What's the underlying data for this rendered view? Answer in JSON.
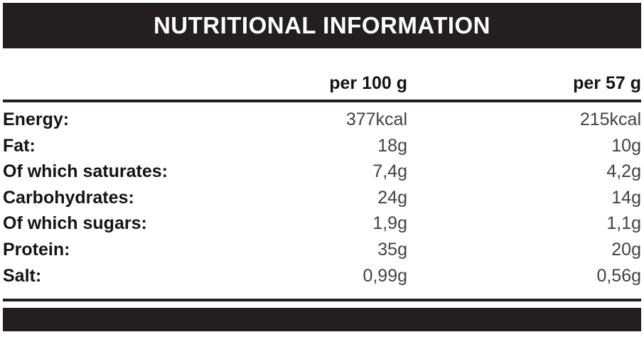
{
  "title": "NUTRITIONAL INFORMATION",
  "table": {
    "columns": [
      "per 100 g",
      "per 57 g"
    ],
    "rows": [
      {
        "label": "Energy:",
        "per_100g": "377kcal",
        "per_57g": "215kcal"
      },
      {
        "label": "Fat:",
        "per_100g": "18g",
        "per_57g": "10g"
      },
      {
        "label": "Of which saturates:",
        "per_100g": "7,4g",
        "per_57g": "4,2g"
      },
      {
        "label": "Carbohydrates:",
        "per_100g": "24g",
        "per_57g": "14g"
      },
      {
        "label": "Of which sugars:",
        "per_100g": "1,9g",
        "per_57g": "1,1g"
      },
      {
        "label": "Protein:",
        "per_100g": "35g",
        "per_57g": "20g"
      },
      {
        "label": "Salt:",
        "per_100g": "0,99g",
        "per_57g": "0,56g"
      }
    ]
  },
  "colors": {
    "bar": "#231f20",
    "label_text": "#161314",
    "value_text": "#424242",
    "title_text": "#ffffff"
  }
}
